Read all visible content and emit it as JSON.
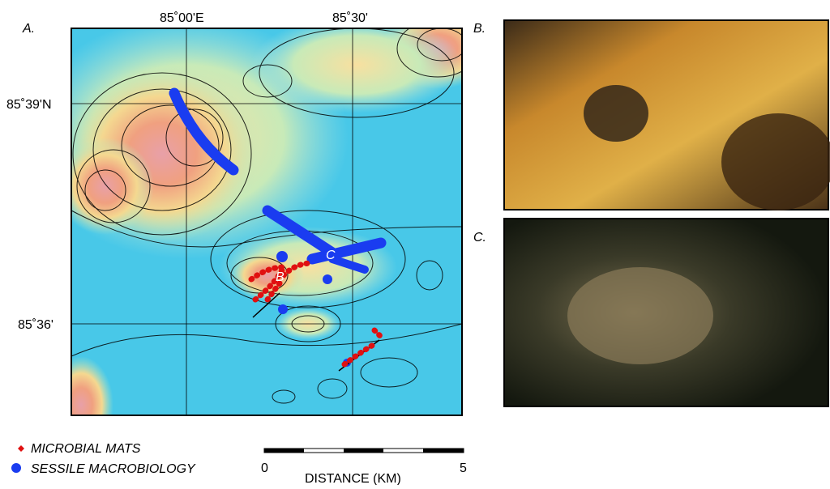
{
  "panels": {
    "a": "A.",
    "b": "B.",
    "c": "C."
  },
  "map": {
    "longitude_labels": [
      "85˚00'E",
      "85˚30'"
    ],
    "latitude_labels": [
      "85˚39'N",
      "85˚36'"
    ],
    "site_labels": [
      "B",
      "C"
    ]
  },
  "legend": {
    "items": [
      "MICROBIAL MATS",
      "SESSILE MACROBIOLOGY"
    ]
  },
  "scale_bar": {
    "start": "0",
    "end": "5",
    "label": "DISTANCE (KM)"
  }
}
